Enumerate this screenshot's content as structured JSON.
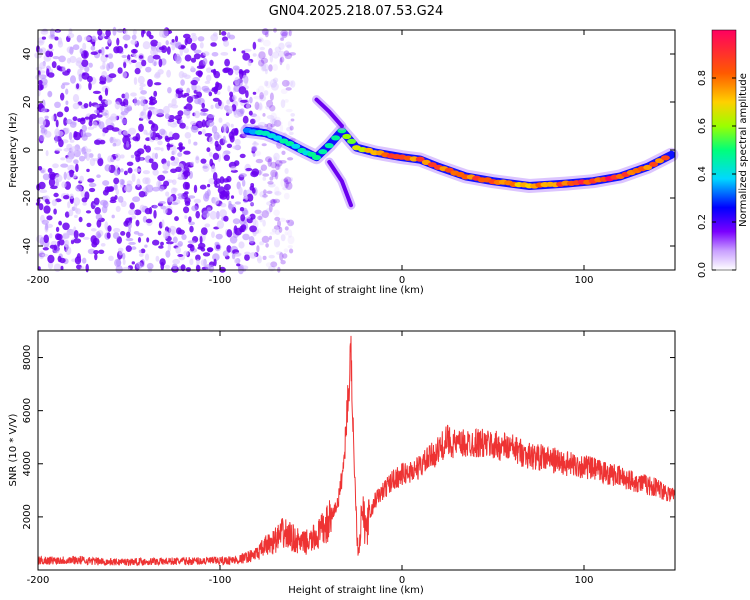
{
  "title": "GN04.2025.218.07.53.G24",
  "chart_data": [
    {
      "type": "heatmap",
      "xlabel": "Height of straight line (km)",
      "ylabel": "Frequency (Hz)",
      "xlim": [
        -200,
        150
      ],
      "ylim": [
        -50,
        50
      ],
      "xticks": [
        -200,
        -100,
        0,
        100
      ],
      "yticks": [
        -40,
        -20,
        0,
        20,
        40
      ],
      "colorbar": {
        "label": "Normalized spectral amplitude",
        "range": [
          0,
          1
        ],
        "ticks": [
          "0.0",
          "0.2",
          "0.4",
          "0.6",
          "0.8"
        ],
        "colormap": [
          "#ffffff",
          "#7a00ff",
          "#0000ff",
          "#00d8ff",
          "#00ff7a",
          "#9bff00",
          "#ffd000",
          "#ff5a00",
          "#ff0060"
        ]
      },
      "noise_region": {
        "x_from": -200,
        "x_to": -80,
        "freq_range": [
          -50,
          50
        ],
        "amplitude": "0.05-0.2"
      },
      "main_trace": [
        {
          "x": -85,
          "f": 8,
          "a": 0.35
        },
        {
          "x": -75,
          "f": 7,
          "a": 0.45
        },
        {
          "x": -65,
          "f": 4,
          "a": 0.45
        },
        {
          "x": -55,
          "f": 0,
          "a": 0.45
        },
        {
          "x": -47,
          "f": -3,
          "a": 0.5
        },
        {
          "x": -40,
          "f": 2,
          "a": 0.45
        },
        {
          "x": -33,
          "f": 8,
          "a": 0.55
        },
        {
          "x": -25,
          "f": 1,
          "a": 0.7
        },
        {
          "x": -15,
          "f": -1,
          "a": 0.9
        },
        {
          "x": 0,
          "f": -3,
          "a": 0.95
        },
        {
          "x": 10,
          "f": -4,
          "a": 0.9
        },
        {
          "x": 20,
          "f": -7,
          "a": 0.9
        },
        {
          "x": 35,
          "f": -11,
          "a": 0.95
        },
        {
          "x": 50,
          "f": -13,
          "a": 0.9
        },
        {
          "x": 70,
          "f": -15,
          "a": 0.85
        },
        {
          "x": 90,
          "f": -14,
          "a": 0.95
        },
        {
          "x": 105,
          "f": -13,
          "a": 0.95
        },
        {
          "x": 120,
          "f": -11,
          "a": 0.95
        },
        {
          "x": 135,
          "f": -7,
          "a": 0.9
        },
        {
          "x": 148,
          "f": -2,
          "a": 0.85
        }
      ],
      "upper_branch": [
        {
          "x": -47,
          "f": 21,
          "a": 0.2
        },
        {
          "x": -40,
          "f": 16,
          "a": 0.2
        },
        {
          "x": -33,
          "f": 10,
          "a": 0.3
        }
      ],
      "lower_branch": [
        {
          "x": -40,
          "f": -5,
          "a": 0.15
        },
        {
          "x": -33,
          "f": -13,
          "a": 0.2
        },
        {
          "x": -28,
          "f": -23,
          "a": 0.25
        }
      ]
    },
    {
      "type": "line",
      "xlabel": "Height of straight line (km)",
      "ylabel": "SNR (10 * V/V)",
      "xlim": [
        -200,
        150
      ],
      "ylim": [
        0,
        9000
      ],
      "xticks": [
        -200,
        -100,
        0,
        100
      ],
      "yticks": [
        2000,
        4000,
        6000,
        8000
      ],
      "color": "#ee3333",
      "series": [
        {
          "x": [
            -200,
            -180,
            -160,
            -140,
            -120,
            -100,
            -90,
            -80,
            -75,
            -70,
            -65,
            -60,
            -55,
            -50,
            -45,
            -40,
            -35,
            -32,
            -30,
            -28,
            -26,
            -24,
            -22,
            -20,
            -15,
            -10,
            -5,
            0,
            5,
            10,
            15,
            20,
            25,
            30,
            40,
            50,
            60,
            70,
            80,
            90,
            100,
            110,
            120,
            130,
            140,
            150
          ],
          "values": [
            350,
            380,
            300,
            320,
            330,
            350,
            380,
            600,
            900,
            1100,
            1400,
            1200,
            1000,
            1100,
            1400,
            1800,
            2600,
            4000,
            6200,
            8000,
            3500,
            600,
            2200,
            1500,
            2600,
            3000,
            3400,
            3600,
            3700,
            3900,
            4200,
            4500,
            4900,
            4700,
            4800,
            4700,
            4600,
            4300,
            4200,
            4000,
            3900,
            3700,
            3500,
            3300,
            3100,
            2800
          ]
        }
      ]
    }
  ]
}
